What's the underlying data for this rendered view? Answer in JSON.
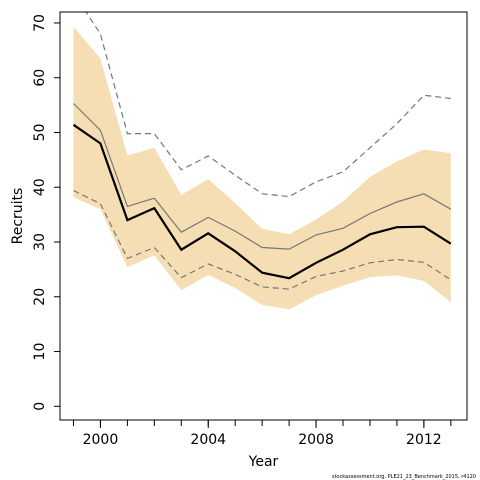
{
  "chart_data": {
    "type": "line",
    "xlabel": "Year",
    "ylabel": "Recruits",
    "xlim": [
      1998.5,
      2013.6
    ],
    "ylim": [
      -2.5,
      72
    ],
    "x_ticks": [
      1999,
      2000,
      2001,
      2002,
      2003,
      2004,
      2005,
      2006,
      2007,
      2008,
      2009,
      2010,
      2011,
      2012,
      2013
    ],
    "x_tick_labels": [
      {
        "year": 2000,
        "label": "2000"
      },
      {
        "year": 2004,
        "label": "2004"
      },
      {
        "year": 2008,
        "label": "2008"
      },
      {
        "year": 2012,
        "label": "2012"
      }
    ],
    "y_ticks": [
      0,
      10,
      20,
      30,
      40,
      50,
      60,
      70
    ],
    "y_tick_labels": [
      "0",
      "10",
      "20",
      "30",
      "40",
      "50",
      "60",
      "70"
    ],
    "x": [
      1999,
      2000,
      2001,
      2002,
      2003,
      2004,
      2005,
      2006,
      2007,
      2008,
      2009,
      2010,
      2011,
      2012,
      2013
    ],
    "band": {
      "color": "#f5deb3",
      "upper": [
        69.3,
        63.5,
        45.8,
        47.2,
        38.6,
        41.5,
        37.1,
        32.4,
        31.4,
        34.1,
        37.4,
        41.9,
        44.7,
        46.9,
        46.2
      ],
      "lower": [
        38.2,
        36.0,
        25.4,
        27.6,
        21.2,
        24.0,
        21.6,
        18.5,
        17.7,
        20.3,
        22.0,
        23.6,
        23.9,
        22.9,
        19.0
      ]
    },
    "series": [
      {
        "style": "solid-thick",
        "color": "#000000",
        "values": [
          51.4,
          48.0,
          34.0,
          36.2,
          28.6,
          31.6,
          28.3,
          24.4,
          23.4,
          26.2,
          28.6,
          31.4,
          32.7,
          32.8,
          29.7
        ]
      },
      {
        "style": "solid-thin",
        "color": "#777777",
        "values": [
          55.3,
          50.4,
          36.5,
          38.0,
          31.8,
          34.5,
          32.0,
          29.0,
          28.7,
          31.3,
          32.5,
          35.2,
          37.3,
          38.8,
          36.0
        ]
      },
      {
        "style": "dashed",
        "color": "#777777",
        "values": [
          75.5,
          68.0,
          49.8,
          49.8,
          43.2,
          45.7,
          42.2,
          38.8,
          38.3,
          41.0,
          42.8,
          47.2,
          51.6,
          56.8,
          56.2
        ]
      },
      {
        "style": "dashed",
        "color": "#777777",
        "values": [
          39.4,
          37.0,
          27.0,
          29.0,
          23.5,
          26.0,
          24.1,
          21.8,
          21.4,
          23.7,
          24.7,
          26.2,
          26.8,
          26.3,
          23.1
        ]
      }
    ],
    "footnote": "stockassessment.org, PLE21_23_Benchmark_2015, r4120"
  }
}
